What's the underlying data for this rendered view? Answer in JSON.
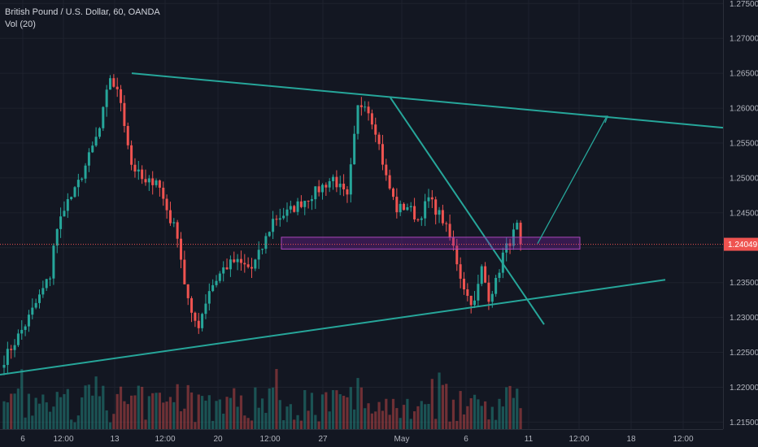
{
  "header": {
    "symbol_line": "British Pound / U.S. Dollar, 60, OANDA",
    "volume_line": "Vol (20)"
  },
  "colors": {
    "background": "#131722",
    "grid": "#1e222d",
    "up": "#26a69a",
    "down": "#ef5350",
    "trendline": "#26a69a",
    "zone_fill": "#7b1fa2",
    "zone_border": "#ab47bc",
    "price_line": "#ef5350",
    "axis_text": "#b2b5be"
  },
  "chart_data": {
    "type": "candlestick",
    "title": "British Pound / U.S. Dollar, 60, OANDA",
    "indicator": "Vol (20)",
    "current_price": "1.24049",
    "y_axis": {
      "range": [
        1.214,
        1.2755
      ],
      "ticks": [
        "1.27500",
        "1.27000",
        "1.26500",
        "1.26000",
        "1.25500",
        "1.25000",
        "1.24500",
        "1.24000",
        "1.23500",
        "1.23000",
        "1.22500",
        "1.22000",
        "1.21500"
      ]
    },
    "x_axis": {
      "ticks": [
        "6",
        "12:00",
        "13",
        "12:00",
        "20",
        "12:00",
        "27",
        "May",
        "6",
        "11",
        "12:00",
        "18",
        "12:00"
      ]
    },
    "price_path": [
      [
        0,
        1.224
      ],
      [
        6,
        1.229
      ],
      [
        10,
        1.233
      ],
      [
        13,
        1.236
      ],
      [
        14,
        1.2405
      ],
      [
        17,
        1.246
      ],
      [
        20,
        1.248
      ],
      [
        24,
        1.253
      ],
      [
        27,
        1.257
      ],
      [
        30,
        1.2645
      ],
      [
        33,
        1.261
      ],
      [
        36,
        1.252
      ],
      [
        40,
        1.249
      ],
      [
        43,
        1.25
      ],
      [
        47,
        1.244
      ],
      [
        49,
        1.242
      ],
      [
        51,
        1.235
      ],
      [
        53,
        1.23
      ],
      [
        55,
        1.229
      ],
      [
        58,
        1.234
      ],
      [
        62,
        1.237
      ],
      [
        65,
        1.238
      ],
      [
        70,
        1.237
      ],
      [
        73,
        1.24
      ],
      [
        76,
        1.244
      ],
      [
        80,
        1.245
      ],
      [
        84,
        1.2465
      ],
      [
        88,
        1.248
      ],
      [
        93,
        1.25
      ],
      [
        97,
        1.247
      ],
      [
        100,
        1.26
      ],
      [
        102,
        1.261
      ],
      [
        105,
        1.257
      ],
      [
        108,
        1.25
      ],
      [
        111,
        1.2455
      ],
      [
        114,
        1.246
      ],
      [
        117,
        1.244
      ],
      [
        120,
        1.247
      ],
      [
        124,
        1.244
      ],
      [
        127,
        1.24
      ],
      [
        129,
        1.236
      ],
      [
        131,
        1.233
      ],
      [
        133,
        1.232
      ],
      [
        135,
        1.237
      ],
      [
        137,
        1.233
      ],
      [
        139,
        1.235
      ],
      [
        141,
        1.239
      ],
      [
        143,
        1.241
      ],
      [
        145,
        1.243
      ],
      [
        146,
        1.2404
      ]
    ],
    "annotations": {
      "upper_trendline": [
        [
          1.265,
          0.0
        ],
        [
          1.2572,
          1.0
        ]
      ],
      "lower_trendline": [
        [
          1.2218,
          0.0
        ],
        [
          1.2354,
          1.0
        ]
      ],
      "falling_line": "from the 1.2615 peak down through 1.2290",
      "support_zone": [
        1.2398,
        1.2415
      ],
      "projection_arrow": "up toward the upper trendline near 1.2588"
    }
  }
}
